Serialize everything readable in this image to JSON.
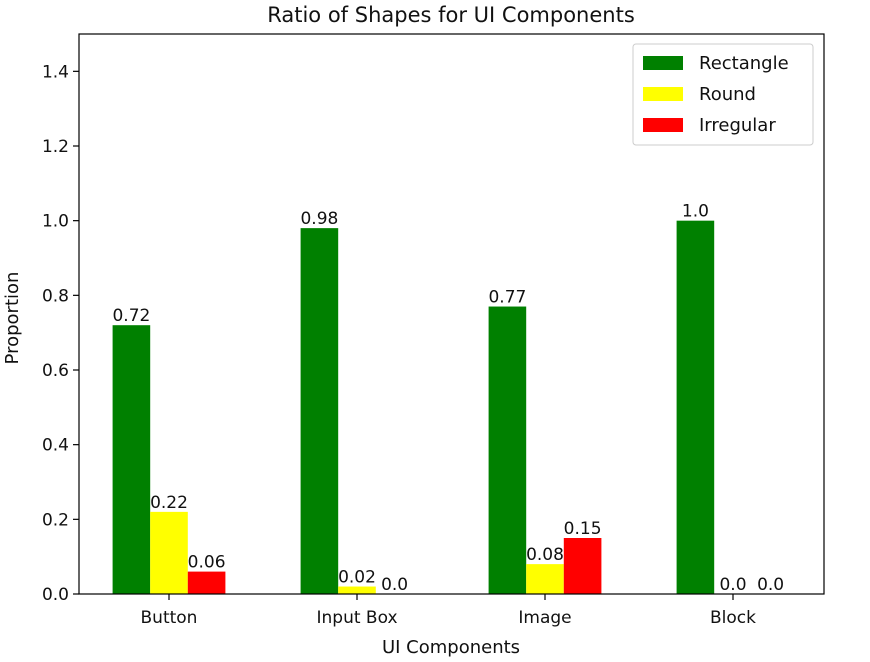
{
  "chart_data": {
    "type": "bar",
    "title": "Ratio of Shapes for UI Components",
    "xlabel": "UI Components",
    "ylabel": "Proportion",
    "categories": [
      "Button",
      "Input Box",
      "Image",
      "Block"
    ],
    "series": [
      {
        "name": "Rectangle",
        "color": "#008000",
        "values": [
          0.72,
          0.98,
          0.77,
          1.0
        ],
        "labels": [
          "0.72",
          "0.98",
          "0.77",
          "1.0"
        ]
      },
      {
        "name": "Round",
        "color": "#ffff00",
        "values": [
          0.22,
          0.02,
          0.08,
          0.0
        ],
        "labels": [
          "0.22",
          "0.02",
          "0.08",
          "0.0"
        ]
      },
      {
        "name": "Irregular",
        "color": "#ff0000",
        "values": [
          0.06,
          0.0,
          0.15,
          0.0
        ],
        "labels": [
          "0.06",
          "0.0",
          "0.15",
          "0.0"
        ]
      }
    ],
    "ylim": [
      0,
      1.5
    ],
    "yticks": [
      "0.0",
      "0.2",
      "0.4",
      "0.6",
      "0.8",
      "1.0",
      "1.2",
      "1.4"
    ],
    "legend_position": "top-right",
    "grid": false
  }
}
